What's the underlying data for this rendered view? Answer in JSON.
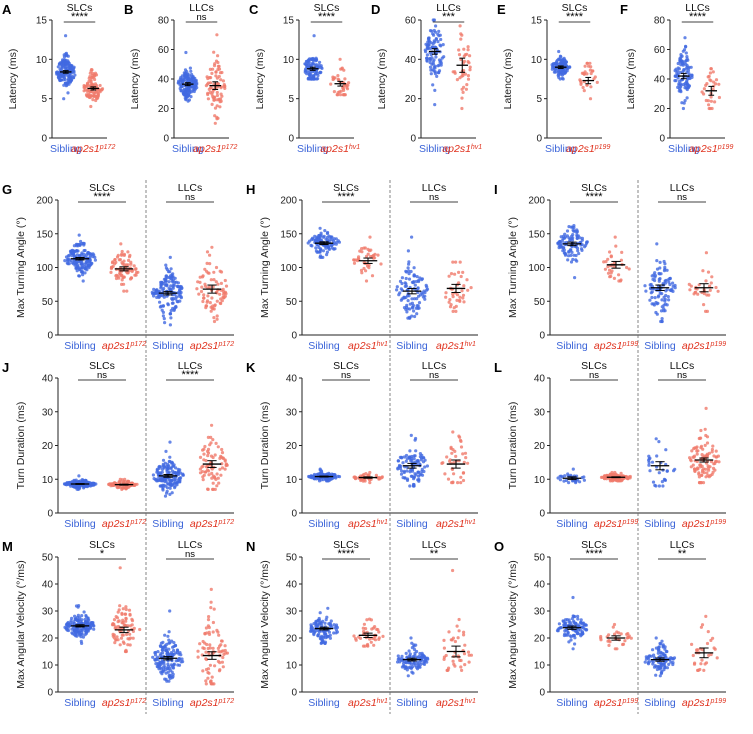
{
  "colors": {
    "sibling": "#4169e1",
    "mutant": "#f07a6c",
    "mutantLabel": "#e0321e",
    "siblingLabel": "#3a63d8",
    "axis": "#222222"
  },
  "chart_data": [
    {
      "panel": "A",
      "type": "scatter",
      "title": "SLCs",
      "ylabel": "Latency (ms)",
      "yticks": [
        0,
        5,
        10,
        15
      ],
      "ylim": [
        0,
        15
      ],
      "groups": [
        {
          "label": "Sibling",
          "sup": "",
          "series": "sibling",
          "mean": 8.4,
          "sem": 0.08,
          "sd": 1.0,
          "min": 5,
          "max": 13,
          "n": 150
        },
        {
          "label": "ap2s1",
          "sup": "p172",
          "series": "mutant",
          "mean": 6.3,
          "sem": 0.1,
          "sd": 0.9,
          "min": 4,
          "max": 8.7,
          "n": 100
        }
      ],
      "comparisons": [
        {
          "g1": 0,
          "g2": 1,
          "label": "****"
        }
      ]
    },
    {
      "panel": "B",
      "type": "scatter",
      "title": "LLCs",
      "ylabel": "Latency (ms)",
      "yticks": [
        0,
        20,
        40,
        60,
        80
      ],
      "ylim": [
        0,
        80
      ],
      "groups": [
        {
          "label": "Sibling",
          "sup": "",
          "series": "sibling",
          "mean": 36.5,
          "sem": 0.5,
          "sd": 5,
          "min": 25,
          "max": 58,
          "n": 150
        },
        {
          "label": "ap2s1",
          "sup": "p172",
          "series": "mutant",
          "mean": 35.5,
          "sem": 1.3,
          "sd": 10,
          "min": 10,
          "max": 70,
          "n": 80
        }
      ],
      "comparisons": [
        {
          "g1": 0,
          "g2": 1,
          "label": "ns"
        }
      ]
    },
    {
      "panel": "C",
      "type": "scatter",
      "title": "SLCs",
      "ylabel": "Latency (ms)",
      "yticks": [
        0,
        5,
        10,
        15
      ],
      "ylim": [
        0,
        15
      ],
      "groups": [
        {
          "label": "Sibling",
          "sup": "",
          "series": "sibling",
          "mean": 8.8,
          "sem": 0.1,
          "sd": 0.9,
          "min": 7.5,
          "max": 13,
          "n": 100
        },
        {
          "label": "ap2s1",
          "sup": "hv1",
          "series": "mutant",
          "mean": 6.9,
          "sem": 0.15,
          "sd": 1.1,
          "min": 5.5,
          "max": 10,
          "n": 40
        }
      ],
      "comparisons": [
        {
          "g1": 0,
          "g2": 1,
          "label": "****"
        }
      ]
    },
    {
      "panel": "D",
      "type": "scatter",
      "title": "LLCs",
      "ylabel": "Latency (ms)",
      "yticks": [
        0,
        20,
        40,
        60
      ],
      "ylim": [
        0,
        60
      ],
      "groups": [
        {
          "label": "Sibling",
          "sup": "",
          "series": "sibling",
          "mean": 44,
          "sem": 0.7,
          "sd": 7,
          "min": 17,
          "max": 60,
          "n": 100
        },
        {
          "label": "ap2s1",
          "sup": "hv1",
          "series": "mutant",
          "mean": 37,
          "sem": 1.8,
          "sd": 9,
          "min": 15,
          "max": 57,
          "n": 40
        }
      ],
      "comparisons": [
        {
          "g1": 0,
          "g2": 1,
          "label": "***"
        }
      ]
    },
    {
      "panel": "E",
      "type": "scatter",
      "title": "SLCs",
      "ylabel": "Latency (ms)",
      "yticks": [
        0,
        5,
        10,
        15
      ],
      "ylim": [
        0,
        15
      ],
      "groups": [
        {
          "label": "Sibling",
          "sup": "",
          "series": "sibling",
          "mean": 9.0,
          "sem": 0.08,
          "sd": 0.6,
          "min": 7.5,
          "max": 11,
          "n": 100
        },
        {
          "label": "ap2s1",
          "sup": "p199",
          "series": "mutant",
          "mean": 7.3,
          "sem": 0.2,
          "sd": 1.0,
          "min": 5,
          "max": 9.5,
          "n": 30
        }
      ],
      "comparisons": [
        {
          "g1": 0,
          "g2": 1,
          "label": "****"
        }
      ]
    },
    {
      "panel": "F",
      "type": "scatter",
      "title": "LLCs",
      "ylabel": "Latency (ms)",
      "yticks": [
        0,
        20,
        40,
        60,
        80
      ],
      "ylim": [
        0,
        80
      ],
      "groups": [
        {
          "label": "Sibling",
          "sup": "",
          "series": "sibling",
          "mean": 42,
          "sem": 0.9,
          "sd": 8,
          "min": 20,
          "max": 68,
          "n": 100
        },
        {
          "label": "ap2s1",
          "sup": "p199",
          "series": "mutant",
          "mean": 32,
          "sem": 1.5,
          "sd": 7,
          "min": 20,
          "max": 47,
          "n": 30
        }
      ],
      "comparisons": [
        {
          "g1": 0,
          "g2": 1,
          "label": "****"
        }
      ]
    },
    {
      "panel": "G",
      "type": "scatter",
      "titles": [
        "SLCs",
        "LLCs"
      ],
      "ylabel": "Max Turning Angle (°)",
      "yticks": [
        0,
        50,
        100,
        150,
        200
      ],
      "ylim": [
        0,
        200
      ],
      "groups": [
        {
          "label": "Sibling",
          "sup": "",
          "series": "sibling",
          "mean": 113,
          "sem": 0.9,
          "sd": 11,
          "min": 80,
          "max": 148,
          "n": 150
        },
        {
          "label": "ap2s1",
          "sup": "p172",
          "series": "mutant",
          "mean": 98,
          "sem": 1.5,
          "sd": 12,
          "min": 65,
          "max": 135,
          "n": 80
        },
        {
          "label": "Sibling",
          "sup": "",
          "series": "sibling",
          "mean": 62,
          "sem": 1.3,
          "sd": 16,
          "min": 15,
          "max": 115,
          "n": 150
        },
        {
          "label": "ap2s1",
          "sup": "p172",
          "series": "mutant",
          "mean": 68,
          "sem": 3,
          "sd": 24,
          "min": 20,
          "max": 130,
          "n": 80
        }
      ],
      "comparisons": [
        {
          "g1": 0,
          "g2": 1,
          "label": "****"
        },
        {
          "g1": 2,
          "g2": 3,
          "label": "ns"
        }
      ]
    },
    {
      "panel": "H",
      "type": "scatter",
      "titles": [
        "SLCs",
        "LLCs"
      ],
      "ylabel": "Max Turning Angle (°)",
      "yticks": [
        0,
        50,
        100,
        150,
        200
      ],
      "ylim": [
        0,
        200
      ],
      "groups": [
        {
          "label": "Sibling",
          "sup": "",
          "series": "sibling",
          "mean": 136,
          "sem": 1,
          "sd": 9,
          "min": 115,
          "max": 158,
          "n": 100
        },
        {
          "label": "ap2s1",
          "sup": "hv1",
          "series": "mutant",
          "mean": 110,
          "sem": 2,
          "sd": 11,
          "min": 80,
          "max": 145,
          "n": 40
        },
        {
          "label": "Sibling",
          "sup": "",
          "series": "sibling",
          "mean": 65,
          "sem": 2,
          "sd": 18,
          "min": 25,
          "max": 145,
          "n": 100
        },
        {
          "label": "ap2s1",
          "sup": "hv1",
          "series": "mutant",
          "mean": 69,
          "sem": 3,
          "sd": 17,
          "min": 35,
          "max": 108,
          "n": 40
        }
      ],
      "comparisons": [
        {
          "g1": 0,
          "g2": 1,
          "label": "****"
        },
        {
          "g1": 2,
          "g2": 3,
          "label": "ns"
        }
      ]
    },
    {
      "panel": "I",
      "type": "scatter",
      "titles": [
        "SLCs",
        "LLCs"
      ],
      "ylabel": "Max Turning Angle (°)",
      "yticks": [
        0,
        50,
        100,
        150,
        200
      ],
      "ylim": [
        0,
        200
      ],
      "groups": [
        {
          "label": "Sibling",
          "sup": "",
          "series": "sibling",
          "mean": 135,
          "sem": 1.3,
          "sd": 12,
          "min": 85,
          "max": 162,
          "n": 100
        },
        {
          "label": "ap2s1",
          "sup": "p199",
          "series": "mutant",
          "mean": 104,
          "sem": 2.5,
          "sd": 12,
          "min": 80,
          "max": 145,
          "n": 30
        },
        {
          "label": "Sibling",
          "sup": "",
          "series": "sibling",
          "mean": 70,
          "sem": 2,
          "sd": 18,
          "min": 20,
          "max": 135,
          "n": 100
        },
        {
          "label": "ap2s1",
          "sup": "p199",
          "series": "mutant",
          "mean": 70,
          "sem": 3,
          "sd": 15,
          "min": 35,
          "max": 122,
          "n": 30
        }
      ],
      "comparisons": [
        {
          "g1": 0,
          "g2": 1,
          "label": "****"
        },
        {
          "g1": 2,
          "g2": 3,
          "label": "ns"
        }
      ]
    },
    {
      "panel": "J",
      "type": "scatter",
      "titles": [
        "SLCs",
        "LLCs"
      ],
      "ylabel": "Turn Duration (ms)",
      "yticks": [
        0,
        10,
        20,
        30,
        40
      ],
      "ylim": [
        0,
        40
      ],
      "groups": [
        {
          "label": "Sibling",
          "sup": "",
          "series": "sibling",
          "mean": 8.6,
          "sem": 0.06,
          "sd": 0.6,
          "min": 7,
          "max": 11,
          "n": 150
        },
        {
          "label": "ap2s1",
          "sup": "p172",
          "series": "mutant",
          "mean": 8.4,
          "sem": 0.07,
          "sd": 0.6,
          "min": 7,
          "max": 10,
          "n": 80
        },
        {
          "label": "Sibling",
          "sup": "",
          "series": "sibling",
          "mean": 11,
          "sem": 0.2,
          "sd": 2.2,
          "min": 5,
          "max": 21,
          "n": 150
        },
        {
          "label": "ap2s1",
          "sup": "p172",
          "series": "mutant",
          "mean": 14.5,
          "sem": 0.5,
          "sd": 4,
          "min": 7,
          "max": 26,
          "n": 80
        }
      ],
      "comparisons": [
        {
          "g1": 0,
          "g2": 1,
          "label": "ns"
        },
        {
          "g1": 2,
          "g2": 3,
          "label": "****"
        }
      ]
    },
    {
      "panel": "K",
      "type": "scatter",
      "titles": [
        "SLCs",
        "LLCs"
      ],
      "ylabel": "Turn Duration (ms)",
      "yticks": [
        0,
        10,
        20,
        30,
        40
      ],
      "ylim": [
        0,
        40
      ],
      "groups": [
        {
          "label": "Sibling",
          "sup": "",
          "series": "sibling",
          "mean": 10.8,
          "sem": 0.07,
          "sd": 0.6,
          "min": 9.5,
          "max": 13,
          "n": 100
        },
        {
          "label": "ap2s1",
          "sup": "hv1",
          "series": "mutant",
          "mean": 10.5,
          "sem": 0.1,
          "sd": 0.6,
          "min": 9,
          "max": 12,
          "n": 40
        },
        {
          "label": "Sibling",
          "sup": "",
          "series": "sibling",
          "mean": 14,
          "sem": 0.35,
          "sd": 3,
          "min": 8,
          "max": 23,
          "n": 100
        },
        {
          "label": "ap2s1",
          "sup": "hv1",
          "series": "mutant",
          "mean": 14.5,
          "sem": 0.6,
          "sd": 3.5,
          "min": 9,
          "max": 24,
          "n": 40
        }
      ],
      "comparisons": [
        {
          "g1": 0,
          "g2": 1,
          "label": "ns"
        },
        {
          "g1": 2,
          "g2": 3,
          "label": "ns"
        }
      ]
    },
    {
      "panel": "L",
      "type": "scatter",
      "titles": [
        "SLCs",
        "LLCs"
      ],
      "ylabel": "Turn Duration (ms)",
      "yticks": [
        0,
        10,
        20,
        30,
        40
      ],
      "ylim": [
        0,
        40
      ],
      "groups": [
        {
          "label": "Sibling",
          "sup": "",
          "series": "sibling",
          "mean": 10.3,
          "sem": 0.2,
          "sd": 0.8,
          "min": 9,
          "max": 13,
          "n": 30
        },
        {
          "label": "ap2s1",
          "sup": "p199",
          "series": "mutant",
          "mean": 10.6,
          "sem": 0.06,
          "sd": 0.6,
          "min": 9.5,
          "max": 12,
          "n": 100
        },
        {
          "label": "Sibling",
          "sup": "",
          "series": "sibling",
          "mean": 14,
          "sem": 0.6,
          "sd": 3.3,
          "min": 8,
          "max": 22,
          "n": 30
        },
        {
          "label": "ap2s1",
          "sup": "p199",
          "series": "mutant",
          "mean": 15.7,
          "sem": 0.3,
          "sd": 3.5,
          "min": 9,
          "max": 31,
          "n": 100
        }
      ],
      "comparisons": [
        {
          "g1": 0,
          "g2": 1,
          "label": "ns"
        },
        {
          "g1": 2,
          "g2": 3,
          "label": "ns"
        }
      ]
    },
    {
      "panel": "M",
      "type": "scatter",
      "titles": [
        "SLCs",
        "LLCs"
      ],
      "ylabel": "Max Angular Velocity (°/ms)",
      "yticks": [
        0,
        10,
        20,
        30,
        40,
        50
      ],
      "ylim": [
        0,
        50
      ],
      "groups": [
        {
          "label": "Sibling",
          "sup": "",
          "series": "sibling",
          "mean": 24.5,
          "sem": 0.2,
          "sd": 2.2,
          "min": 18,
          "max": 32,
          "n": 150
        },
        {
          "label": "ap2s1",
          "sup": "p172",
          "series": "mutant",
          "mean": 23,
          "sem": 0.5,
          "sd": 4,
          "min": 15,
          "max": 46,
          "n": 80
        },
        {
          "label": "Sibling",
          "sup": "",
          "series": "sibling",
          "mean": 12.5,
          "sem": 0.3,
          "sd": 3.5,
          "min": 4,
          "max": 30,
          "n": 150
        },
        {
          "label": "ap2s1",
          "sup": "p172",
          "series": "mutant",
          "mean": 13.5,
          "sem": 0.7,
          "sd": 6,
          "min": 3,
          "max": 38,
          "n": 80
        }
      ],
      "comparisons": [
        {
          "g1": 0,
          "g2": 1,
          "label": "*"
        },
        {
          "g1": 2,
          "g2": 3,
          "label": "ns"
        }
      ]
    },
    {
      "panel": "N",
      "type": "scatter",
      "titles": [
        "SLCs",
        "LLCs"
      ],
      "ylabel": "Max Angular Velocity (°/ms)",
      "yticks": [
        0,
        10,
        20,
        30,
        40,
        50
      ],
      "ylim": [
        0,
        50
      ],
      "groups": [
        {
          "label": "Sibling",
          "sup": "",
          "series": "sibling",
          "mean": 23.5,
          "sem": 0.25,
          "sd": 2.2,
          "min": 18,
          "max": 31,
          "n": 100
        },
        {
          "label": "ap2s1",
          "sup": "hv1",
          "series": "mutant",
          "mean": 21,
          "sem": 0.4,
          "sd": 2.3,
          "min": 17,
          "max": 27,
          "n": 40
        },
        {
          "label": "Sibling",
          "sup": "",
          "series": "sibling",
          "mean": 12,
          "sem": 0.25,
          "sd": 2.5,
          "min": 6,
          "max": 20,
          "n": 100
        },
        {
          "label": "ap2s1",
          "sup": "hv1",
          "series": "mutant",
          "mean": 15,
          "sem": 1,
          "sd": 6,
          "min": 8,
          "max": 45,
          "n": 40
        }
      ],
      "comparisons": [
        {
          "g1": 0,
          "g2": 1,
          "label": "****"
        },
        {
          "g1": 2,
          "g2": 3,
          "label": "**"
        }
      ]
    },
    {
      "panel": "O",
      "type": "scatter",
      "titles": [
        "SLCs",
        "LLCs"
      ],
      "ylabel": "Max Angular Velocity (°/ms)",
      "yticks": [
        0,
        10,
        20,
        30,
        40,
        50
      ],
      "ylim": [
        0,
        50
      ],
      "groups": [
        {
          "label": "Sibling",
          "sup": "",
          "series": "sibling",
          "mean": 23.8,
          "sem": 0.3,
          "sd": 2.5,
          "min": 16,
          "max": 35,
          "n": 100
        },
        {
          "label": "ap2s1",
          "sup": "p199",
          "series": "mutant",
          "mean": 20,
          "sem": 0.4,
          "sd": 2,
          "min": 16,
          "max": 25,
          "n": 30
        },
        {
          "label": "Sibling",
          "sup": "",
          "series": "sibling",
          "mean": 12,
          "sem": 0.3,
          "sd": 2.6,
          "min": 6,
          "max": 20,
          "n": 100
        },
        {
          "label": "ap2s1",
          "sup": "p199",
          "series": "mutant",
          "mean": 14.5,
          "sem": 0.9,
          "sd": 4.5,
          "min": 8,
          "max": 28,
          "n": 30
        }
      ],
      "comparisons": [
        {
          "g1": 0,
          "g2": 1,
          "label": "****"
        },
        {
          "g1": 2,
          "g2": 3,
          "label": "**"
        }
      ]
    }
  ]
}
